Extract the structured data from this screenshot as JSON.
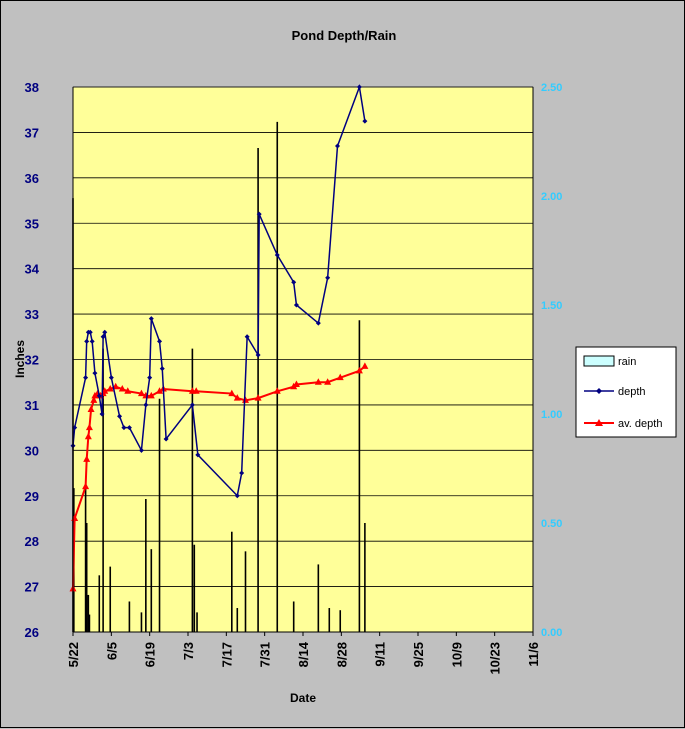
{
  "chart_data": {
    "type": "line",
    "title": "Pond Depth/Rain",
    "xlabel": "Date",
    "ylabel": "Inches",
    "x_ticks": [
      "5/22",
      "6/5",
      "6/19",
      "7/3",
      "7/17",
      "7/31",
      "8/14",
      "8/28",
      "9/11",
      "9/25",
      "10/9",
      "10/23",
      "11/6"
    ],
    "x_range": [
      "5/22",
      "11/6"
    ],
    "ylim_left": [
      26,
      38
    ],
    "y_ticks_left": [
      "26",
      "27",
      "28",
      "29",
      "30",
      "31",
      "32",
      "33",
      "34",
      "35",
      "36",
      "37",
      "38"
    ],
    "ylim_right": [
      0,
      2.5
    ],
    "y_ticks_right": [
      "0.00",
      "0.50",
      "1.00",
      "1.50",
      "2.00",
      "2.50"
    ],
    "grid": "horizontal",
    "legend_position": "right",
    "legend": [
      "rain",
      "depth",
      "av. depth"
    ],
    "colors": {
      "plot_bg": "#ffff99",
      "outer_bg": "#c0c0c0",
      "rain": "#000000",
      "depth": "#000080",
      "av_depth": "#ff0000",
      "left_ticks": "#000080",
      "right_ticks": "#33ccff"
    },
    "series": [
      {
        "name": "rain",
        "type": "bar",
        "axis": "right",
        "points": [
          {
            "x": 0.0,
            "y": 1.99
          },
          {
            "x": 0.3,
            "y": 0.66
          },
          {
            "x": 4.6,
            "y": 0.66
          },
          {
            "x": 5.0,
            "y": 0.5
          },
          {
            "x": 5.6,
            "y": 0.17
          },
          {
            "x": 6.0,
            "y": 0.08
          },
          {
            "x": 9.6,
            "y": 0.26
          },
          {
            "x": 11.0,
            "y": 1.3
          },
          {
            "x": 13.6,
            "y": 0.3
          },
          {
            "x": 20.6,
            "y": 0.14
          },
          {
            "x": 25.0,
            "y": 0.09
          },
          {
            "x": 26.6,
            "y": 0.61
          },
          {
            "x": 28.6,
            "y": 0.38
          },
          {
            "x": 31.6,
            "y": 1.07
          },
          {
            "x": 43.6,
            "y": 1.3
          },
          {
            "x": 44.3,
            "y": 0.4
          },
          {
            "x": 45.3,
            "y": 0.09
          },
          {
            "x": 58.0,
            "y": 0.46
          },
          {
            "x": 60.0,
            "y": 0.11
          },
          {
            "x": 63.0,
            "y": 0.37
          },
          {
            "x": 67.6,
            "y": 2.22
          },
          {
            "x": 74.6,
            "y": 2.34
          },
          {
            "x": 80.6,
            "y": 0.14
          },
          {
            "x": 89.6,
            "y": 0.31
          },
          {
            "x": 93.6,
            "y": 0.11
          },
          {
            "x": 97.6,
            "y": 0.1
          },
          {
            "x": 104.6,
            "y": 1.43
          },
          {
            "x": 106.6,
            "y": 0.5
          }
        ]
      },
      {
        "name": "depth",
        "type": "line",
        "axis": "left",
        "marker": "diamond",
        "points": [
          {
            "x": 0.0,
            "y": 30.1
          },
          {
            "x": 0.6,
            "y": 30.5
          },
          {
            "x": 4.6,
            "y": 31.6
          },
          {
            "x": 5.0,
            "y": 32.4
          },
          {
            "x": 5.6,
            "y": 32.6
          },
          {
            "x": 6.3,
            "y": 32.6
          },
          {
            "x": 7.0,
            "y": 32.4
          },
          {
            "x": 8.0,
            "y": 31.7
          },
          {
            "x": 9.6,
            "y": 31.2
          },
          {
            "x": 10.6,
            "y": 30.8
          },
          {
            "x": 11.0,
            "y": 32.5
          },
          {
            "x": 11.6,
            "y": 32.6
          },
          {
            "x": 14.0,
            "y": 31.6
          },
          {
            "x": 17.0,
            "y": 30.75
          },
          {
            "x": 18.6,
            "y": 30.5
          },
          {
            "x": 20.6,
            "y": 30.5
          },
          {
            "x": 25.0,
            "y": 30.0
          },
          {
            "x": 26.6,
            "y": 31.0
          },
          {
            "x": 28.0,
            "y": 31.6
          },
          {
            "x": 28.6,
            "y": 32.9
          },
          {
            "x": 31.6,
            "y": 32.4
          },
          {
            "x": 32.6,
            "y": 31.8
          },
          {
            "x": 34.0,
            "y": 30.25
          },
          {
            "x": 43.6,
            "y": 31.0
          },
          {
            "x": 45.6,
            "y": 29.9
          },
          {
            "x": 60.0,
            "y": 29.0
          },
          {
            "x": 61.6,
            "y": 29.5
          },
          {
            "x": 63.6,
            "y": 32.5
          },
          {
            "x": 67.6,
            "y": 32.1
          },
          {
            "x": 68.0,
            "y": 35.2
          },
          {
            "x": 74.6,
            "y": 34.3
          },
          {
            "x": 80.6,
            "y": 33.7
          },
          {
            "x": 81.6,
            "y": 33.2
          },
          {
            "x": 89.6,
            "y": 32.8
          },
          {
            "x": 93.0,
            "y": 33.8
          },
          {
            "x": 96.6,
            "y": 36.7
          },
          {
            "x": 104.6,
            "y": 38.0
          },
          {
            "x": 106.6,
            "y": 37.25
          }
        ]
      },
      {
        "name": "av. depth",
        "type": "line",
        "axis": "left",
        "marker": "triangle",
        "points": [
          {
            "x": 0.0,
            "y": 26.95
          },
          {
            "x": 0.6,
            "y": 28.5
          },
          {
            "x": 4.6,
            "y": 29.2
          },
          {
            "x": 5.0,
            "y": 29.8
          },
          {
            "x": 5.6,
            "y": 30.3
          },
          {
            "x": 6.0,
            "y": 30.5
          },
          {
            "x": 6.6,
            "y": 30.9
          },
          {
            "x": 7.6,
            "y": 31.1
          },
          {
            "x": 8.0,
            "y": 31.2
          },
          {
            "x": 9.0,
            "y": 31.25
          },
          {
            "x": 10.0,
            "y": 31.2
          },
          {
            "x": 11.0,
            "y": 31.25
          },
          {
            "x": 11.6,
            "y": 31.3
          },
          {
            "x": 13.6,
            "y": 31.35
          },
          {
            "x": 15.6,
            "y": 31.4
          },
          {
            "x": 18.0,
            "y": 31.35
          },
          {
            "x": 20.0,
            "y": 31.3
          },
          {
            "x": 25.0,
            "y": 31.25
          },
          {
            "x": 26.6,
            "y": 31.2
          },
          {
            "x": 28.6,
            "y": 31.2
          },
          {
            "x": 31.6,
            "y": 31.3
          },
          {
            "x": 33.0,
            "y": 31.35
          },
          {
            "x": 43.6,
            "y": 31.3
          },
          {
            "x": 45.0,
            "y": 31.3
          },
          {
            "x": 58.0,
            "y": 31.25
          },
          {
            "x": 60.0,
            "y": 31.15
          },
          {
            "x": 63.0,
            "y": 31.1
          },
          {
            "x": 67.6,
            "y": 31.15
          },
          {
            "x": 74.6,
            "y": 31.3
          },
          {
            "x": 80.6,
            "y": 31.4
          },
          {
            "x": 81.6,
            "y": 31.45
          },
          {
            "x": 89.6,
            "y": 31.5
          },
          {
            "x": 93.0,
            "y": 31.5
          },
          {
            "x": 97.6,
            "y": 31.6
          },
          {
            "x": 104.6,
            "y": 31.75
          },
          {
            "x": 106.6,
            "y": 31.85
          }
        ]
      }
    ]
  }
}
